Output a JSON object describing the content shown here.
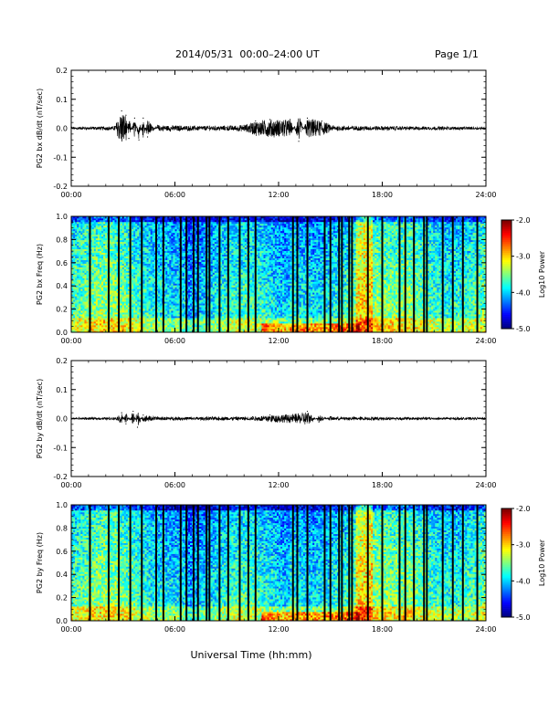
{
  "header": {
    "title": "2014/05/31  00:00–24:00 UT",
    "page": "Page 1/1"
  },
  "chart_data": [
    {
      "type": "line",
      "ylabel": "PG2 bx dB/dt (nT/sec)",
      "xlabel": "",
      "xlim": [
        "00:00",
        "24:00"
      ],
      "x_ticks": [
        "00:00",
        "06:00",
        "12:00",
        "18:00",
        "24:00"
      ],
      "ylim": [
        -0.2,
        0.2
      ],
      "y_ticks": [
        "0.2",
        "0.1",
        "0.0",
        "-0.1",
        "-0.2"
      ],
      "series": [
        {
          "values": [
            {
              "x": "00:00",
              "y": 0.004
            },
            {
              "x": "02:30",
              "y": 0.006
            },
            {
              "x": "02:55",
              "y": 0.06
            },
            {
              "x": "03:10",
              "y": 0.045
            },
            {
              "x": "03:20",
              "y": -0.035
            },
            {
              "x": "03:40",
              "y": 0.035
            },
            {
              "x": "03:55",
              "y": -0.04
            },
            {
              "x": "04:10",
              "y": 0.035
            },
            {
              "x": "04:25",
              "y": -0.03
            },
            {
              "x": "05:00",
              "y": 0.01
            },
            {
              "x": "08:00",
              "y": 0.007
            },
            {
              "x": "10:00",
              "y": 0.01
            },
            {
              "x": "10:40",
              "y": 0.025
            },
            {
              "x": "11:30",
              "y": 0.03
            },
            {
              "x": "12:40",
              "y": 0.03
            },
            {
              "x": "13:10",
              "y": -0.045
            },
            {
              "x": "13:40",
              "y": 0.035
            },
            {
              "x": "14:30",
              "y": 0.025
            },
            {
              "x": "15:10",
              "y": 0.008
            },
            {
              "x": "24:00",
              "y": 0.004
            }
          ]
        }
      ]
    },
    {
      "type": "heatmap",
      "ylabel": "PG2 bx Freq (Hz)",
      "xlabel": "",
      "xlim": [
        "00:00",
        "24:00"
      ],
      "x_ticks": [
        "00:00",
        "06:00",
        "12:00",
        "18:00",
        "24:00"
      ],
      "ylim": [
        0.0,
        1.0
      ],
      "y_ticks": [
        "1.0",
        "0.8",
        "0.6",
        "0.4",
        "0.2",
        "0.0"
      ],
      "colorbar": {
        "label": "Log10 Power",
        "range": [
          -5.0,
          -2.0
        ],
        "ticks": [
          "-2.0",
          "-3.0",
          "-4.0",
          "-5.0"
        ]
      },
      "data_gaps": [
        "01:05",
        "02:10",
        "02:45",
        "03:25",
        "04:05",
        "04:55",
        "05:20",
        "06:20",
        "06:40",
        "07:05",
        "07:20",
        "07:50",
        "08:00",
        "08:35",
        "09:05",
        "09:45",
        "10:15",
        "10:40",
        "12:50",
        "13:05",
        "13:40",
        "14:40",
        "15:00",
        "15:30",
        "15:40",
        "16:05",
        "16:15",
        "17:10",
        "18:00",
        "19:00",
        "19:20",
        "19:50",
        "20:25",
        "20:35",
        "21:30",
        "22:05",
        "22:40",
        "23:30"
      ],
      "low_freq_enhancement": [
        {
          "x": "11:30",
          "y": 0.02
        },
        {
          "x": "13:00",
          "y": 0.04
        },
        {
          "x": "14:30",
          "y": 0.05
        },
        {
          "x": "16:00",
          "y": 0.03
        }
      ]
    },
    {
      "type": "line",
      "ylabel": "PG2 by dB/dt (nT/sec)",
      "xlabel": "",
      "xlim": [
        "00:00",
        "24:00"
      ],
      "x_ticks": [
        "00:00",
        "06:00",
        "12:00",
        "18:00",
        "24:00"
      ],
      "ylim": [
        -0.2,
        0.2
      ],
      "y_ticks": [
        "0.2",
        "0.1",
        "0.0",
        "-0.1",
        "-0.2"
      ],
      "series": [
        {
          "values": [
            {
              "x": "00:00",
              "y": 0.003
            },
            {
              "x": "02:40",
              "y": 0.004
            },
            {
              "x": "02:55",
              "y": 0.02
            },
            {
              "x": "03:10",
              "y": -0.018
            },
            {
              "x": "03:35",
              "y": 0.025
            },
            {
              "x": "03:50",
              "y": -0.03
            },
            {
              "x": "04:10",
              "y": 0.012
            },
            {
              "x": "05:00",
              "y": 0.005
            },
            {
              "x": "10:30",
              "y": 0.006
            },
            {
              "x": "11:30",
              "y": 0.012
            },
            {
              "x": "13:00",
              "y": 0.015
            },
            {
              "x": "13:40",
              "y": 0.025
            },
            {
              "x": "14:20",
              "y": -0.012
            },
            {
              "x": "15:00",
              "y": 0.006
            },
            {
              "x": "24:00",
              "y": 0.003
            }
          ]
        }
      ]
    },
    {
      "type": "heatmap",
      "ylabel": "PG2 by Freq (Hz)",
      "xlabel": "Universal Time (hh:mm)",
      "xlim": [
        "00:00",
        "24:00"
      ],
      "x_ticks": [
        "00:00",
        "06:00",
        "12:00",
        "18:00",
        "24:00"
      ],
      "ylim": [
        0.0,
        1.0
      ],
      "y_ticks": [
        "1.0",
        "0.8",
        "0.6",
        "0.4",
        "0.2",
        "0.0"
      ],
      "colorbar": {
        "label": "Log10 Power",
        "range": [
          -5.0,
          -2.0
        ],
        "ticks": [
          "-2.0",
          "-3.0",
          "-4.0",
          "-5.0"
        ]
      },
      "data_gaps": [
        "01:05",
        "02:10",
        "02:45",
        "03:25",
        "04:05",
        "04:55",
        "05:20",
        "06:20",
        "06:40",
        "07:05",
        "07:20",
        "07:50",
        "08:00",
        "08:35",
        "09:05",
        "09:45",
        "10:15",
        "10:40",
        "12:50",
        "13:05",
        "13:40",
        "14:40",
        "15:00",
        "15:30",
        "15:40",
        "16:05",
        "16:15",
        "17:10",
        "18:00",
        "19:00",
        "19:20",
        "19:50",
        "20:25",
        "20:35",
        "21:30",
        "22:05",
        "22:40",
        "23:30"
      ],
      "low_freq_enhancement": [
        {
          "x": "11:30",
          "y": 0.02
        },
        {
          "x": "13:00",
          "y": 0.04
        },
        {
          "x": "14:30",
          "y": 0.05
        },
        {
          "x": "16:00",
          "y": 0.03
        }
      ]
    }
  ]
}
